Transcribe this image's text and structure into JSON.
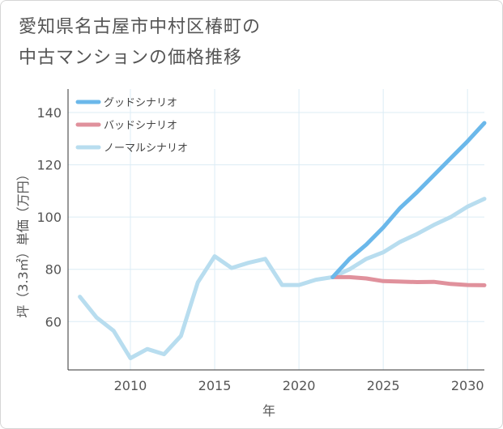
{
  "title_line1": "愛知県名古屋市中村区椿町の",
  "title_line2": "中古マンションの価格推移",
  "chart_data": {
    "type": "line",
    "xlabel": "年",
    "ylabel": "坪（3.3㎡）単価（万円）",
    "xlim": [
      2006.3,
      2031
    ],
    "ylim": [
      41.5,
      149
    ],
    "xticks": [
      2010,
      2015,
      2020,
      2025,
      2030
    ],
    "yticks": [
      60,
      80,
      100,
      120,
      140
    ],
    "grid": true,
    "legend_position": "top-left",
    "series": [
      {
        "name": "グッドシナリオ",
        "color": "#6bb8ea",
        "x": [
          2022,
          2023,
          2024,
          2025,
          2026,
          2027,
          2028,
          2029,
          2030,
          2031
        ],
        "y": [
          77,
          84,
          89.5,
          96,
          103.5,
          109.5,
          116,
          122.5,
          129,
          136
        ]
      },
      {
        "name": "バッドシナリオ",
        "color": "#e0919c",
        "x": [
          2022,
          2023,
          2024,
          2025,
          2026,
          2027,
          2028,
          2029,
          2030,
          2031
        ],
        "y": [
          77,
          77,
          76.5,
          75.5,
          75.3,
          75.1,
          75.2,
          74.4,
          74,
          73.9
        ]
      },
      {
        "name": "ノーマルシナリオ",
        "color": "#b8ddef",
        "x": [
          2007,
          2008,
          2009,
          2010,
          2011,
          2012,
          2013,
          2014,
          2015,
          2016,
          2017,
          2018,
          2019,
          2020,
          2021,
          2022,
          2023,
          2024,
          2025,
          2026,
          2027,
          2028,
          2029,
          2030,
          2031
        ],
        "y": [
          69.5,
          61.5,
          56.5,
          46,
          49.5,
          47.5,
          54.5,
          75,
          85,
          80.5,
          82.5,
          84,
          74,
          74,
          76,
          77,
          80,
          84,
          86.5,
          90.5,
          93.5,
          97,
          100,
          104,
          107
        ]
      }
    ]
  }
}
